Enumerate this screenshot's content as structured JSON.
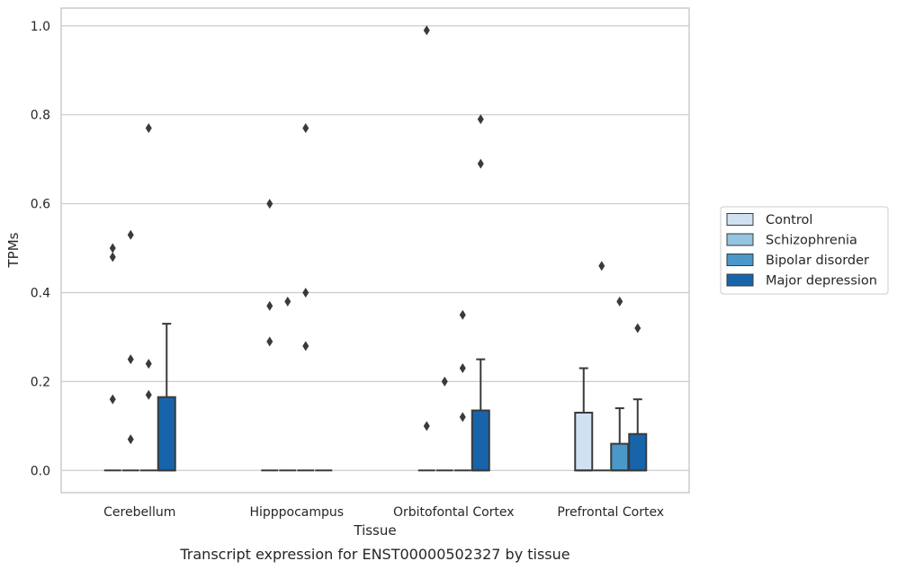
{
  "caption": "Transcript expression for ENST00000502327 by tissue",
  "chart_data": {
    "type": "box",
    "title": "",
    "xlabel": "Tissue",
    "ylabel": "TPMs",
    "ylim": [
      -0.05,
      1.04
    ],
    "yticks": [
      0.0,
      0.2,
      0.4,
      0.6,
      0.8,
      1.0
    ],
    "ytick_labels": [
      "0.0",
      "0.2",
      "0.4",
      "0.6",
      "0.8",
      "1.0"
    ],
    "grid": "horizontal",
    "legend_position": "right",
    "categories": [
      "Cerebellum",
      "Hipppocampus",
      "Orbitofontal Cortex",
      "Prefrontal Cortex"
    ],
    "series": [
      {
        "name": "Control",
        "color": "#d0e1f2",
        "boxes": [
          {
            "q1": 0,
            "median": 0,
            "q3": 0,
            "whisker_low": 0,
            "whisker_high": 0,
            "outliers": [
              0.5,
              0.48,
              0.16
            ]
          },
          {
            "q1": 0,
            "median": 0,
            "q3": 0,
            "whisker_low": 0,
            "whisker_high": 0,
            "outliers": [
              0.6,
              0.37,
              0.29
            ]
          },
          {
            "q1": 0,
            "median": 0,
            "q3": 0,
            "whisker_low": 0,
            "whisker_high": 0,
            "outliers": [
              0.99,
              0.1
            ]
          },
          {
            "q1": 0,
            "median": 0,
            "q3": 0.13,
            "whisker_low": 0,
            "whisker_high": 0.23,
            "outliers": []
          }
        ]
      },
      {
        "name": "Schizophrenia",
        "color": "#94c4df",
        "boxes": [
          {
            "q1": 0,
            "median": 0,
            "q3": 0,
            "whisker_low": 0,
            "whisker_high": 0,
            "outliers": [
              0.53,
              0.25,
              0.07
            ]
          },
          {
            "q1": 0,
            "median": 0,
            "q3": 0,
            "whisker_low": 0,
            "whisker_high": 0,
            "outliers": [
              0.38
            ]
          },
          {
            "q1": 0,
            "median": 0,
            "q3": 0,
            "whisker_low": 0,
            "whisker_high": 0,
            "outliers": [
              0.2
            ]
          },
          {
            "q1": 0,
            "median": 0,
            "q3": 0,
            "whisker_low": 0,
            "whisker_high": 0,
            "outliers": [
              0.46
            ]
          }
        ]
      },
      {
        "name": "Bipolar disorder",
        "color": "#4a98c9",
        "boxes": [
          {
            "q1": 0,
            "median": 0,
            "q3": 0,
            "whisker_low": 0,
            "whisker_high": 0,
            "outliers": [
              0.77,
              0.24,
              0.17
            ]
          },
          {
            "q1": 0,
            "median": 0,
            "q3": 0,
            "whisker_low": 0,
            "whisker_high": 0,
            "outliers": [
              0.77,
              0.4,
              0.28
            ]
          },
          {
            "q1": 0,
            "median": 0,
            "q3": 0,
            "whisker_low": 0,
            "whisker_high": 0,
            "outliers": [
              0.35,
              0.23,
              0.12
            ]
          },
          {
            "q1": 0,
            "median": 0,
            "q3": 0.06,
            "whisker_low": 0,
            "whisker_high": 0.14,
            "outliers": [
              0.38
            ]
          }
        ]
      },
      {
        "name": "Major depression",
        "color": "#1764ab",
        "boxes": [
          {
            "q1": 0,
            "median": 0,
            "q3": 0.165,
            "whisker_low": 0,
            "whisker_high": 0.33,
            "outliers": []
          },
          {
            "q1": 0,
            "median": 0,
            "q3": 0,
            "whisker_low": 0,
            "whisker_high": 0,
            "outliers": []
          },
          {
            "q1": 0,
            "median": 0,
            "q3": 0.135,
            "whisker_low": 0,
            "whisker_high": 0.25,
            "outliers": [
              0.79,
              0.69
            ]
          },
          {
            "q1": 0,
            "median": 0,
            "q3": 0.082,
            "whisker_low": 0,
            "whisker_high": 0.16,
            "outliers": [
              0.32
            ]
          }
        ]
      }
    ]
  }
}
